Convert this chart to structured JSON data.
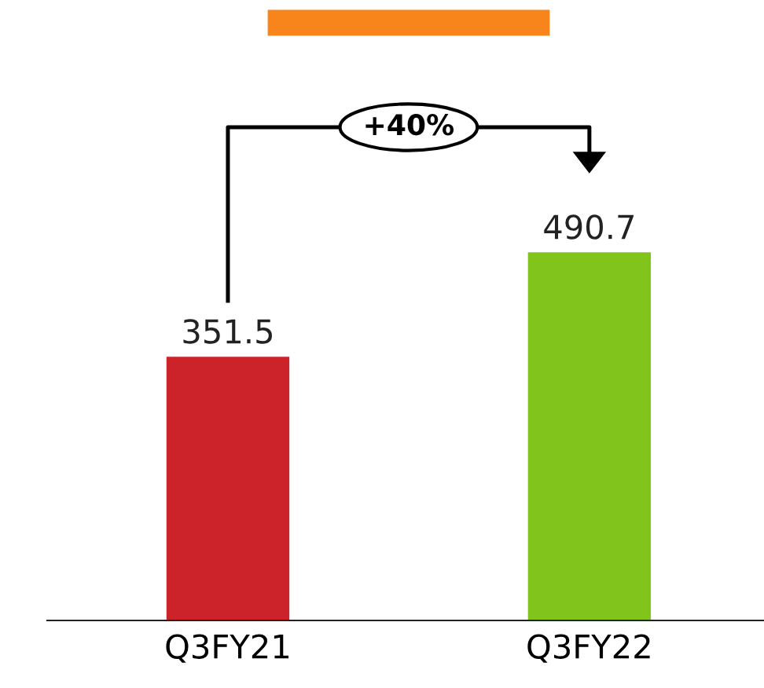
{
  "chart_data": {
    "type": "bar",
    "categories": [
      "Q3FY21",
      "Q3FY22"
    ],
    "values": [
      351.5,
      490.7
    ],
    "colors": [
      "#cc2229",
      "#80c41c"
    ],
    "data_labels": true,
    "annotations": [
      "+40%"
    ]
  }
}
